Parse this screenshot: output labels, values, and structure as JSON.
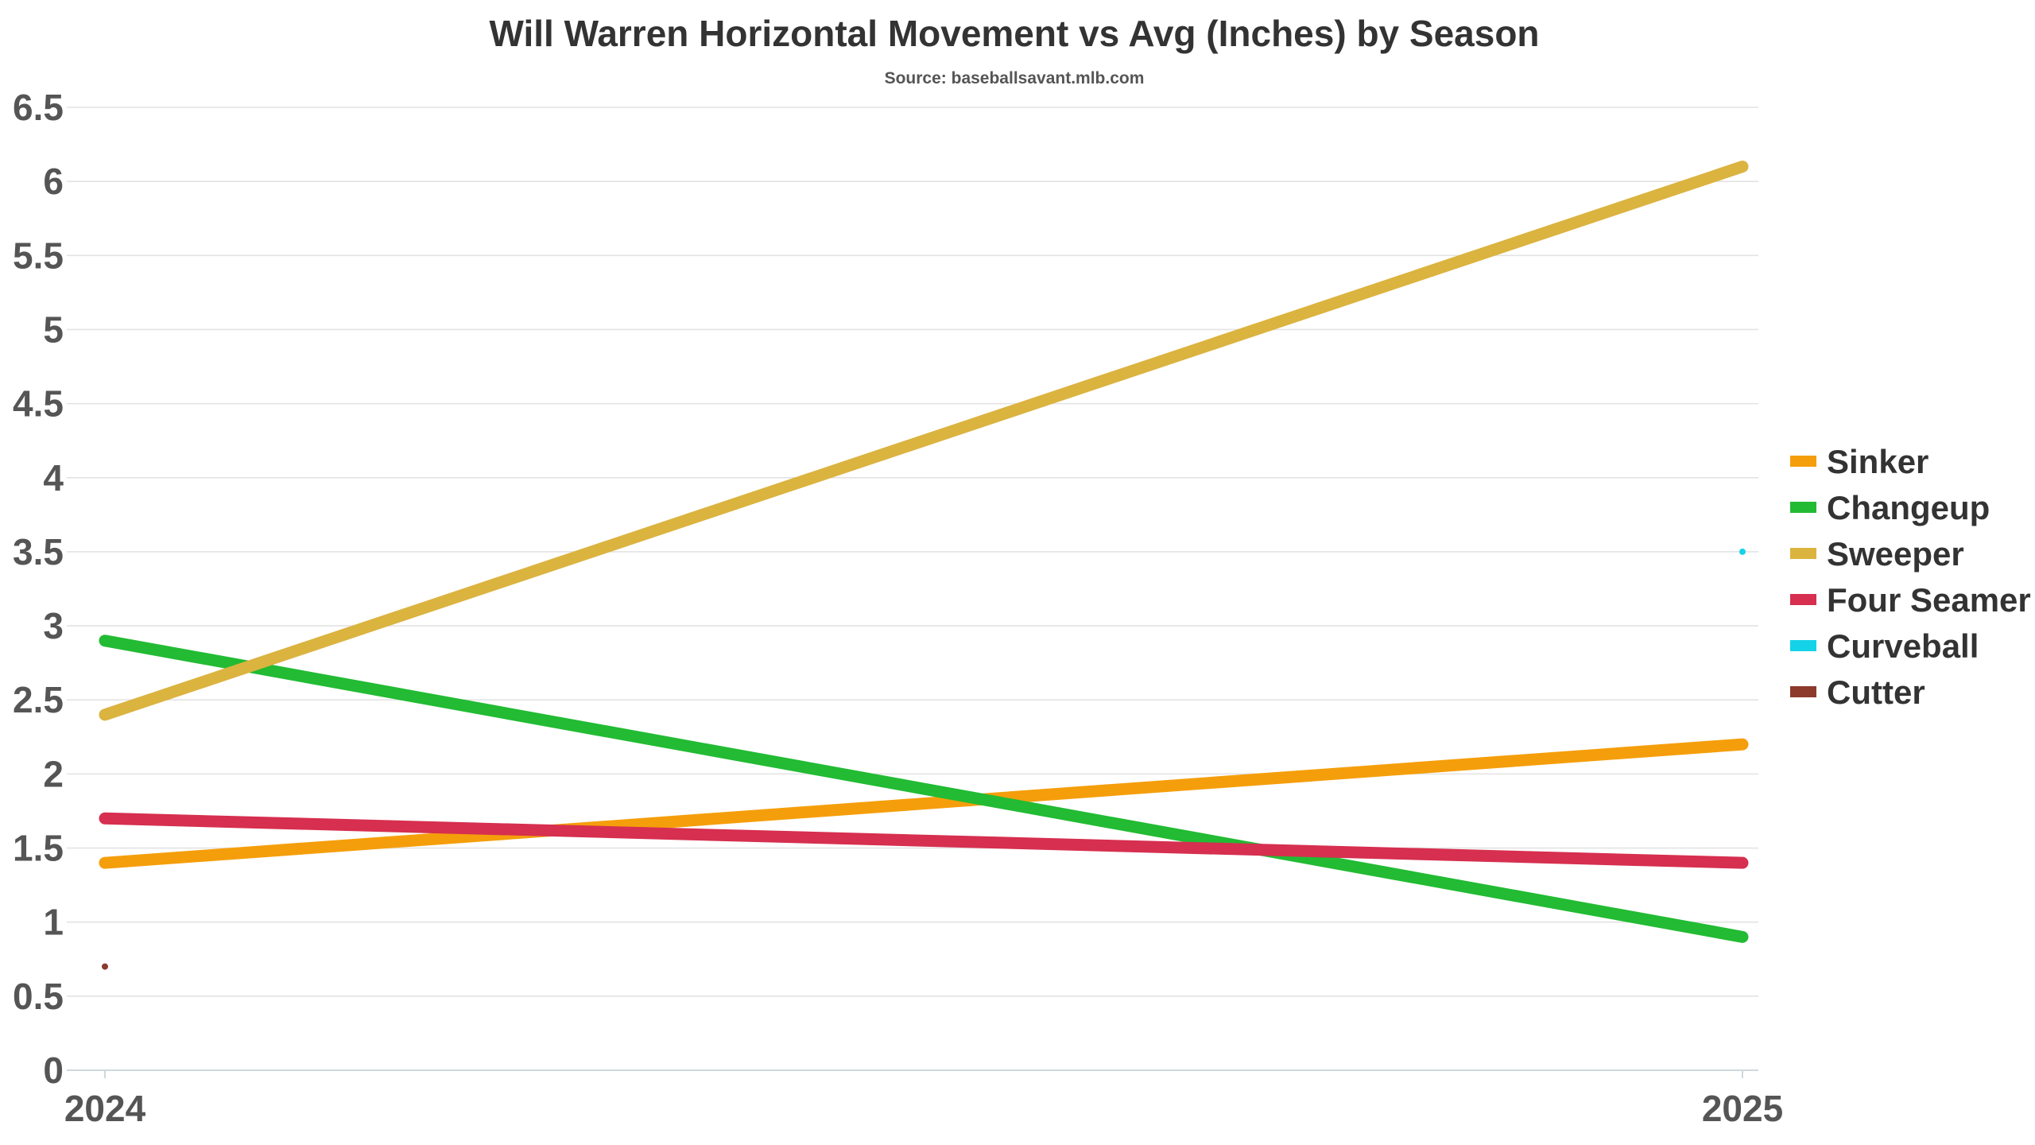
{
  "chart_data": {
    "type": "line",
    "title": "Will Warren Horizontal Movement vs Avg (Inches) by Season",
    "subtitle": "Source: baseballsavant.mlb.com",
    "xlabel": "",
    "ylabel": "",
    "x": [
      "2024",
      "2025"
    ],
    "ylim": [
      0,
      6.5
    ],
    "yticks": [
      0,
      0.5,
      1,
      1.5,
      2,
      2.5,
      3,
      3.5,
      4,
      4.5,
      5,
      5.5,
      6,
      6.5
    ],
    "ytick_labels": [
      "0",
      "0.5",
      "1",
      "1.5",
      "2",
      "2.5",
      "3",
      "3.5",
      "4",
      "4.5",
      "5",
      "5.5",
      "6",
      "6.5"
    ],
    "grid": true,
    "legend_position": "right",
    "series": [
      {
        "name": "Sinker",
        "color": "#f59e0b",
        "values": [
          1.4,
          2.2
        ]
      },
      {
        "name": "Changeup",
        "color": "#22bb33",
        "values": [
          2.9,
          0.9
        ]
      },
      {
        "name": "Sweeper",
        "color": "#dbb33f",
        "values": [
          2.4,
          6.1
        ]
      },
      {
        "name": "Four Seamer",
        "color": "#d62f4f",
        "values": [
          1.7,
          1.4
        ]
      },
      {
        "name": "Curveball",
        "color": "#14d3e8",
        "values": [
          null,
          3.5
        ]
      },
      {
        "name": "Cutter",
        "color": "#8b3a2b",
        "values": [
          0.7,
          null
        ]
      }
    ]
  }
}
